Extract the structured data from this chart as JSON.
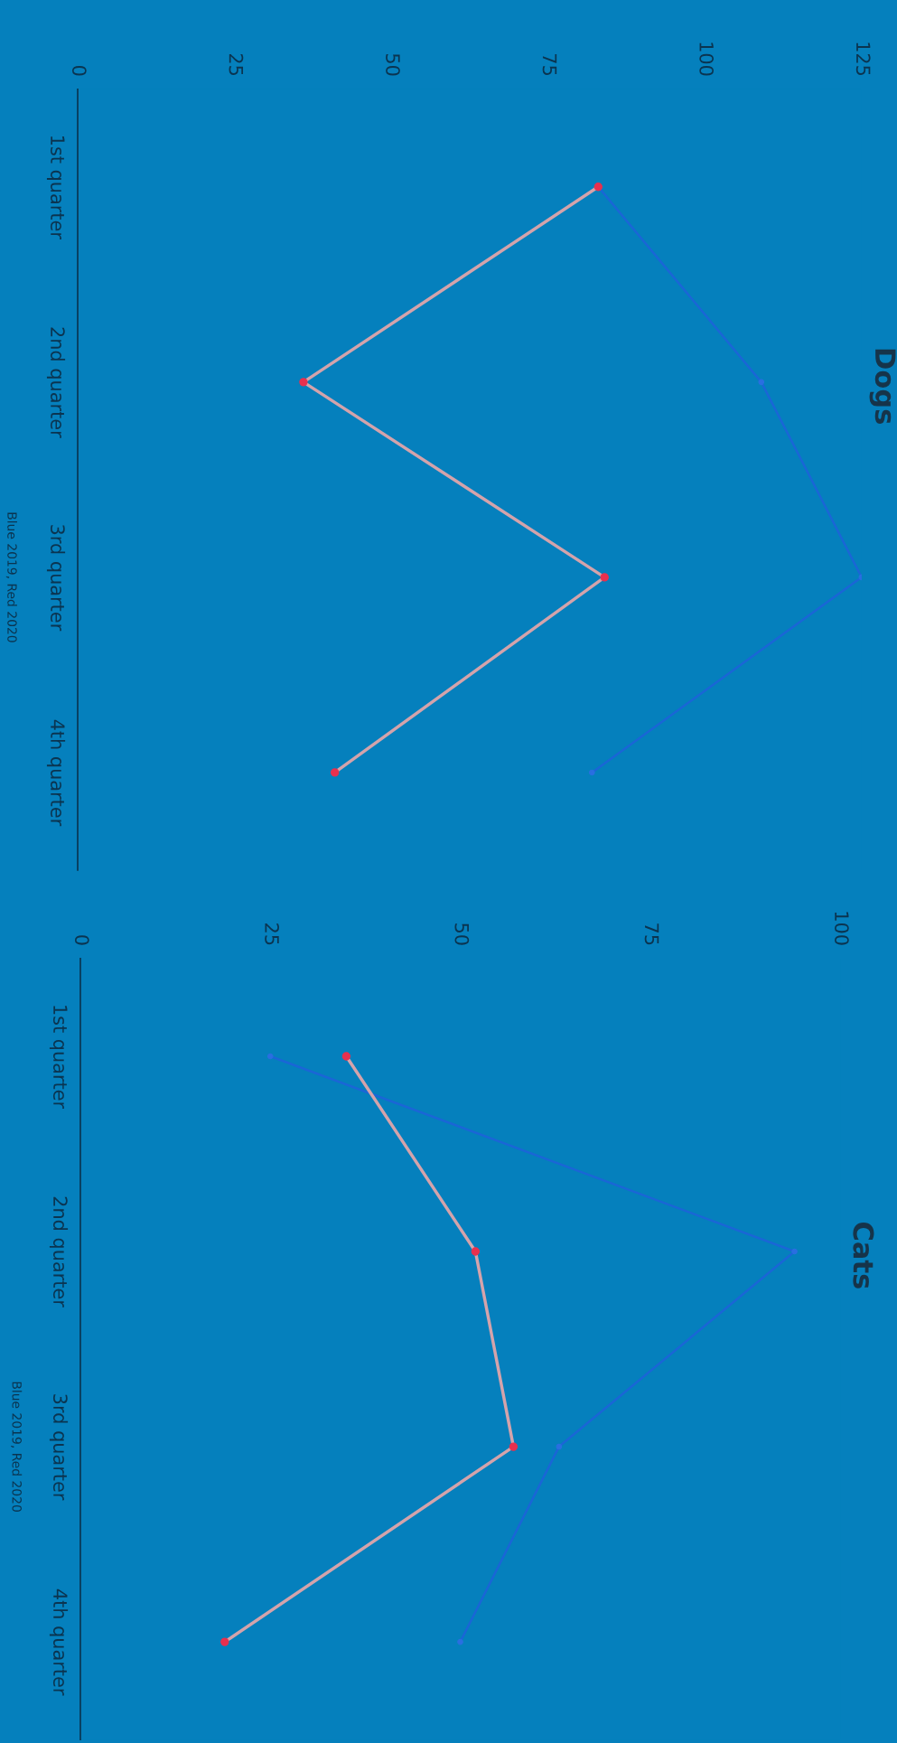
{
  "chart_data": [
    {
      "type": "line",
      "orientation": "horizontal",
      "title": "Dogs",
      "categories": [
        "1st quarter",
        "2nd quarter",
        "3rd quarter",
        "4th quarter"
      ],
      "series": [
        {
          "color": "#1a66d6",
          "values": [
            83,
            109,
            125,
            82
          ],
          "marker": "circle"
        },
        {
          "color": "#d4a3ab",
          "values": [
            83,
            36,
            84,
            41
          ],
          "marker": "circle"
        }
      ],
      "xlim": [
        0,
        125
      ],
      "xticks": [
        0,
        25,
        50,
        75,
        100,
        125
      ],
      "grid": false,
      "legend": false,
      "annotations": [
        "Blue 2019, Red 2020"
      ]
    },
    {
      "type": "line",
      "orientation": "horizontal",
      "title": "Cats",
      "categories": [
        "1st quarter",
        "2nd quarter",
        "3rd quarter",
        "4th quarter"
      ],
      "series": [
        {
          "color": "#1a66d6",
          "values": [
            25,
            94,
            63,
            50
          ],
          "marker": "circle"
        },
        {
          "color": "#d4a3ab",
          "values": [
            35,
            52,
            57,
            19
          ],
          "marker": "circle"
        }
      ],
      "xlim": [
        0,
        100
      ],
      "xticks": [
        0,
        25,
        50,
        75,
        100
      ],
      "grid": false,
      "legend": false,
      "annotations": [
        "Blue 2019, Red 2020"
      ]
    }
  ]
}
